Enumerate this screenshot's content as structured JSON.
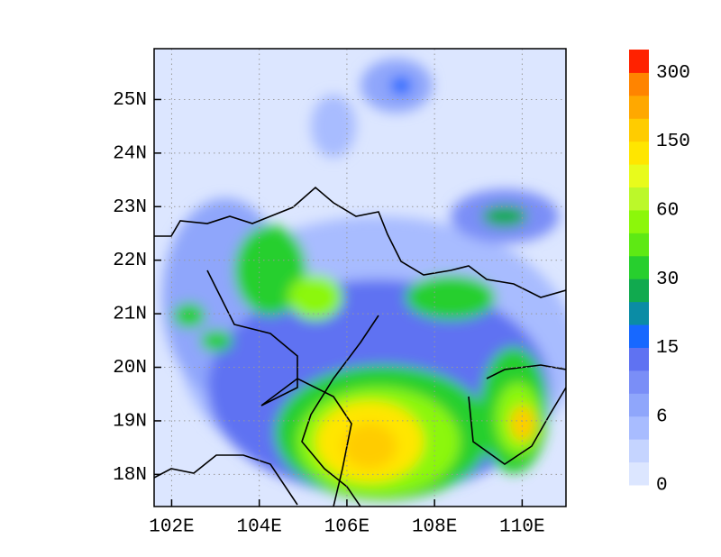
{
  "map": {
    "xlim": [
      101.6,
      111.0
    ],
    "ylim": [
      17.4,
      25.95
    ],
    "xticks": [
      {
        "value": 102,
        "label": "102E"
      },
      {
        "value": 104,
        "label": "104E"
      },
      {
        "value": 106,
        "label": "106E"
      },
      {
        "value": 108,
        "label": "108E"
      },
      {
        "value": 110,
        "label": "110E"
      }
    ],
    "yticks": [
      {
        "value": 18,
        "label": "18N"
      },
      {
        "value": 19,
        "label": "19N"
      },
      {
        "value": 20,
        "label": "20N"
      },
      {
        "value": 21,
        "label": "21N"
      },
      {
        "value": 22,
        "label": "22N"
      },
      {
        "value": 23,
        "label": "23N"
      },
      {
        "value": 24,
        "label": "24N"
      },
      {
        "value": 25,
        "label": "25N"
      }
    ],
    "grid": true
  },
  "colorbar": {
    "labels": [
      0,
      6,
      15,
      30,
      60,
      150,
      300
    ],
    "colors": [
      "#dce6ff",
      "#c5d4ff",
      "#a8bcff",
      "#8fa6fb",
      "#7a8ef7",
      "#5f72f2",
      "#1768ff",
      "#0b8ca5",
      "#11aa4f",
      "#27cf2e",
      "#5ee914",
      "#8cf70a",
      "#bcf82a",
      "#e8fb1c",
      "#ffe600",
      "#ffcc00",
      "#ffa800",
      "#ff8400",
      "#ff2200"
    ]
  }
}
